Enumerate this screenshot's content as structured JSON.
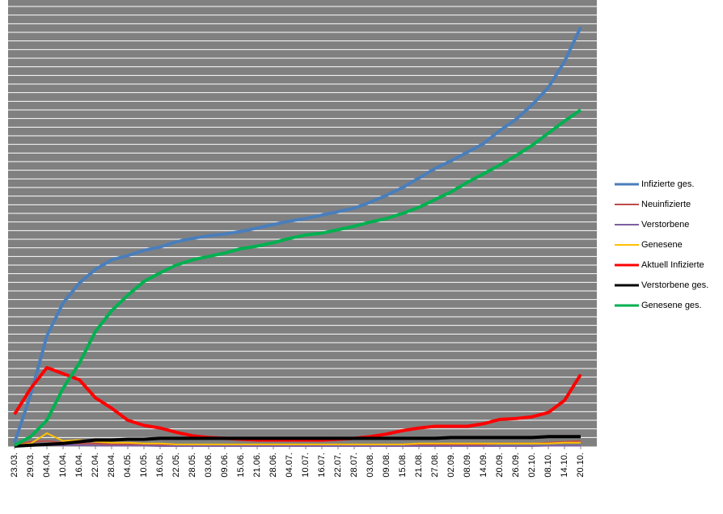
{
  "chart_data": {
    "type": "line",
    "categories": [
      "23.03.",
      "29.03.",
      "04.04.",
      "10.04.",
      "16.04.",
      "22.04.",
      "28.04.",
      "04.05.",
      "10.05.",
      "16.05.",
      "22.05.",
      "28.05.",
      "03.06.",
      "09.06.",
      "15.06.",
      "21.06.",
      "28.06.",
      "04.07.",
      "10.07.",
      "16.07.",
      "22.07.",
      "28.07.",
      "03.08.",
      "09.08.",
      "15.08.",
      "21.08.",
      "27.08.",
      "02.09.",
      "08.09.",
      "14.09.",
      "20.09.",
      "26.09.",
      "02.10.",
      "08.10.",
      "14.10.",
      "20.10."
    ],
    "series": [
      {
        "name": "Infizierte ges.",
        "color": "#4a7ebb",
        "values": [
          0.4,
          6,
          12.8,
          16.6,
          18.9,
          20.5,
          21.6,
          22.1,
          22.7,
          23.1,
          23.7,
          24.1,
          24.4,
          24.6,
          24.9,
          25.3,
          25.7,
          26.1,
          26.4,
          26.8,
          27.2,
          27.6,
          28.3,
          29.1,
          30,
          31.1,
          32.2,
          33.1,
          34.1,
          35.1,
          36.6,
          37.9,
          39.6,
          41.6,
          44.6,
          48.6
        ]
      },
      {
        "name": "Neuinfizierte",
        "color": "#be4b48",
        "values": [
          0.2,
          0.5,
          0.6,
          0.4,
          0.3,
          0.3,
          0.2,
          0.2,
          0.1,
          0.1,
          0.1,
          0.1,
          0.1,
          0.1,
          0.1,
          0.1,
          0.1,
          0.1,
          0.1,
          0.1,
          0.1,
          0.1,
          0.2,
          0.2,
          0.2,
          0.2,
          0.2,
          0.2,
          0.2,
          0.2,
          0.3,
          0.3,
          0.3,
          0.4,
          0.5,
          0.6
        ]
      },
      {
        "name": "Verstorbene",
        "color": "#7d5fa0",
        "values": [
          0,
          0.05,
          0.1,
          0.1,
          0.1,
          0.05,
          0.05,
          0.05,
          0.05,
          0,
          0,
          0,
          0,
          0,
          0,
          0,
          0,
          0,
          0,
          0,
          0,
          0,
          0,
          0,
          0,
          0,
          0,
          0,
          0,
          0,
          0,
          0,
          0,
          0.05,
          0.05,
          0.05
        ]
      },
      {
        "name": "Genesene",
        "color": "#ffc000",
        "values": [
          0.1,
          0.3,
          1.5,
          0.6,
          0.7,
          0.5,
          0.4,
          0.4,
          0.3,
          0.3,
          0.2,
          0.2,
          0.2,
          0.2,
          0.2,
          0.2,
          0.2,
          0.2,
          0.2,
          0.2,
          0.2,
          0.2,
          0.2,
          0.2,
          0.2,
          0.3,
          0.3,
          0.3,
          0.3,
          0.3,
          0.3,
          0.3,
          0.3,
          0.3,
          0.4,
          0.4
        ]
      },
      {
        "name": "Aktuell Infizierte",
        "color": "#ff0000",
        "values": [
          3.7,
          6.7,
          9.1,
          8.4,
          7.7,
          5.6,
          4.4,
          3,
          2.4,
          2.1,
          1.6,
          1.2,
          1,
          0.9,
          0.8,
          0.7,
          0.7,
          0.7,
          0.7,
          0.7,
          0.8,
          0.9,
          1.1,
          1.4,
          1.8,
          2.1,
          2.3,
          2.3,
          2.3,
          2.6,
          3.1,
          3.2,
          3.4,
          3.9,
          5.3,
          8.3
        ]
      },
      {
        "name": "Verstorbene ges.",
        "color": "#000000",
        "values": [
          0,
          0.1,
          0.2,
          0.3,
          0.5,
          0.7,
          0.7,
          0.8,
          0.8,
          0.9,
          0.9,
          0.9,
          0.9,
          0.9,
          0.9,
          0.9,
          0.9,
          0.9,
          0.9,
          0.9,
          0.9,
          0.9,
          0.9,
          0.9,
          0.9,
          0.9,
          0.9,
          1,
          1,
          1,
          1,
          1,
          1,
          1.1,
          1.1,
          1.1
        ]
      },
      {
        "name": "Genesene ges.",
        "color": "#00b050",
        "values": [
          0.1,
          1.1,
          3,
          6.7,
          9.6,
          13.3,
          15.7,
          17.5,
          19.1,
          20.1,
          21,
          21.6,
          22,
          22.4,
          22.9,
          23.2,
          23.6,
          24.1,
          24.5,
          24.7,
          25.1,
          25.5,
          26,
          26.4,
          27,
          27.7,
          28.6,
          29.5,
          30.6,
          31.6,
          32.6,
          33.7,
          34.9,
          36.3,
          37.7,
          39
        ]
      }
    ],
    "ylim": [
      0,
      51
    ],
    "yticks": [
      0,
      1,
      2,
      3,
      4,
      5,
      6,
      7,
      8,
      9,
      10,
      11,
      12,
      13,
      14,
      15,
      16,
      17,
      18,
      19,
      20,
      21,
      22,
      23,
      24,
      25,
      26,
      27,
      28,
      29,
      30,
      31,
      32,
      33,
      34,
      35,
      36,
      37,
      38,
      39,
      40,
      41,
      42,
      43,
      44,
      45,
      46,
      47,
      48,
      49,
      50,
      51
    ],
    "grid": true,
    "legend": "right",
    "plot_background": "#808080"
  }
}
